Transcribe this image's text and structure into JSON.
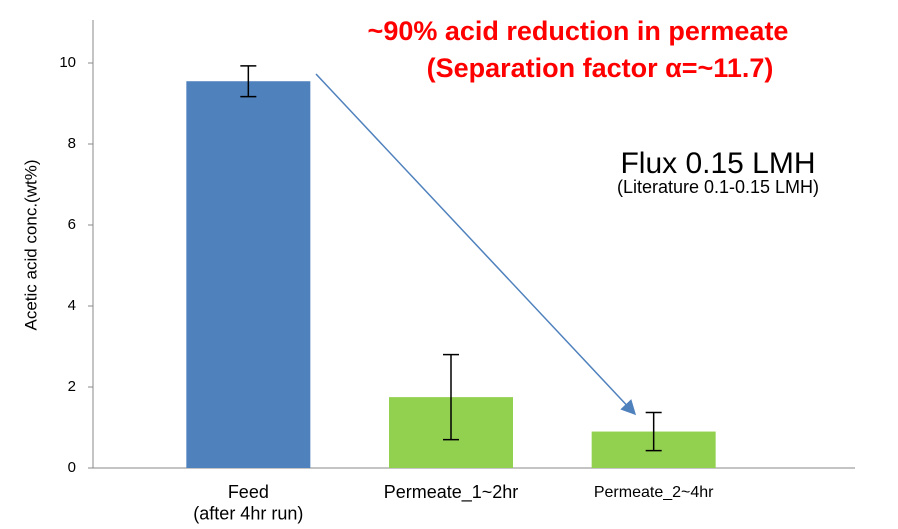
{
  "chart_data": {
    "type": "bar",
    "title": [
      "~90% acid reduction in permeate",
      "(Separation factor α=~11.7)"
    ],
    "annotations": [
      "Flux 0.15 LMH",
      "(Literature 0.1-0.15 LMH)"
    ],
    "y_label": "Acetic acid conc.(wt%)",
    "categories": [
      "Feed\n(after 4hr run)",
      "Permeate_1~2hr",
      "Permeate_2~4hr"
    ],
    "values": [
      9.55,
      1.75,
      0.9
    ],
    "errors": [
      0.38,
      1.05,
      0.47
    ],
    "colors": [
      "#4f81bd",
      "#92d050",
      "#92d050"
    ],
    "ylim": [
      0,
      11
    ],
    "yticks": [
      0,
      2,
      4,
      6,
      8,
      10
    ]
  }
}
